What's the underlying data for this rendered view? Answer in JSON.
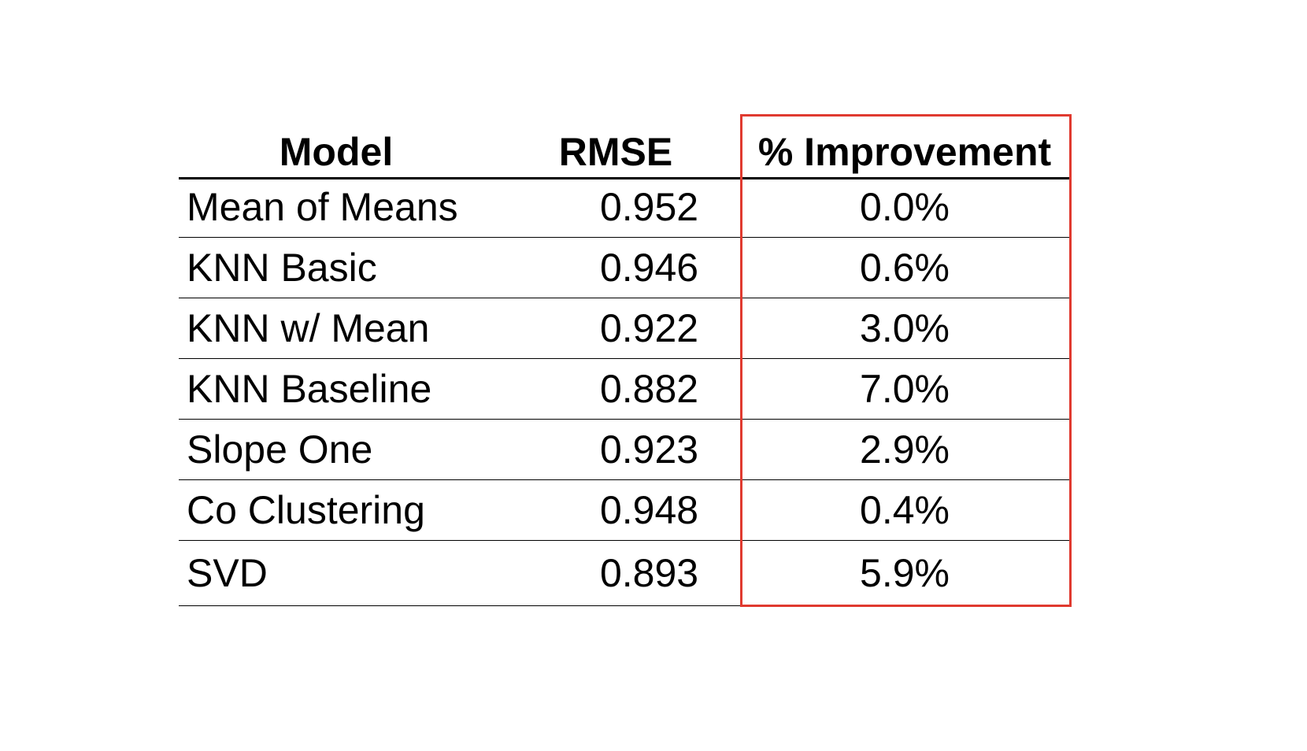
{
  "chart_data": {
    "type": "table",
    "columns": [
      "Model",
      "RMSE",
      "% Improvement"
    ],
    "rows": [
      {
        "model": "Mean of Means",
        "rmse": "0.952",
        "improvement": "0.0%"
      },
      {
        "model": "KNN Basic",
        "rmse": "0.946",
        "improvement": "0.6%"
      },
      {
        "model": "KNN w/ Mean",
        "rmse": "0.922",
        "improvement": "3.0%"
      },
      {
        "model": "KNN Baseline",
        "rmse": "0.882",
        "improvement": "7.0%"
      },
      {
        "model": "Slope One",
        "rmse": "0.923",
        "improvement": "2.9%"
      },
      {
        "model": "Co Clustering",
        "rmse": "0.948",
        "improvement": "0.4%"
      },
      {
        "model": "SVD",
        "rmse": "0.893",
        "improvement": "5.9%"
      }
    ],
    "highlighted_column": "% Improvement"
  },
  "colors": {
    "highlight_border": "#e03a2f",
    "text": "#000000",
    "background": "#ffffff"
  }
}
